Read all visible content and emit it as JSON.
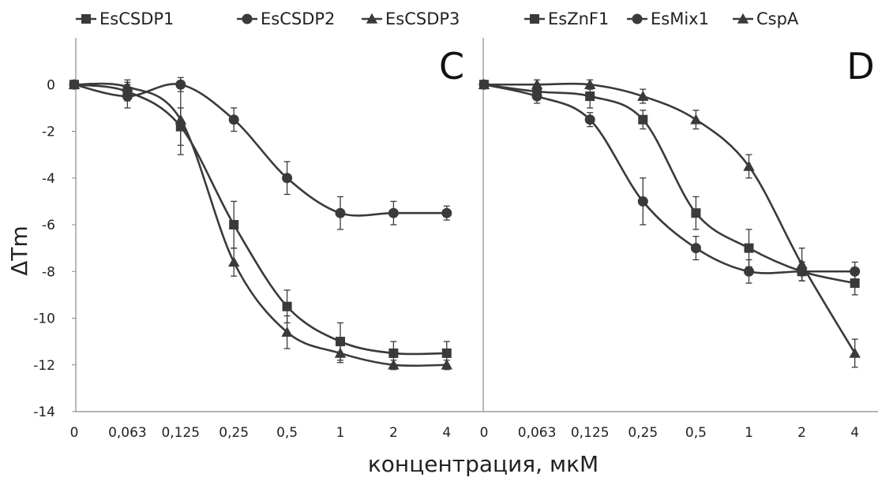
{
  "chart_data": [
    {
      "type": "line",
      "panel_label": "C",
      "x": [
        "0",
        "0,063",
        "0,125",
        "0,25",
        "0,5",
        "1",
        "2",
        "4"
      ],
      "xlabel": "концентрация, мкМ",
      "ylabel": "ΔTm",
      "ylim": [
        -14,
        2
      ],
      "yticks": [
        0,
        -2,
        -4,
        -6,
        -8,
        -10,
        -12,
        -14
      ],
      "grid": false,
      "legend_position": "top",
      "series": [
        {
          "name": "EsCSDP1",
          "marker": "square",
          "values": [
            0,
            -0.3,
            -1.8,
            -6.0,
            -9.5,
            -11.0,
            -11.5,
            -11.5
          ],
          "errors": [
            0.1,
            0.4,
            0.8,
            1.0,
            0.7,
            0.8,
            0.5,
            0.5
          ]
        },
        {
          "name": "EsCSDP2",
          "marker": "circle",
          "values": [
            0,
            -0.5,
            0,
            -1.5,
            -4.0,
            -5.5,
            -5.5,
            -5.5
          ],
          "errors": [
            0.1,
            0.5,
            0.3,
            0.5,
            0.7,
            0.7,
            0.5,
            0.3
          ]
        },
        {
          "name": "EsCSDP3",
          "marker": "triangle",
          "values": [
            0,
            -0.1,
            -1.5,
            -7.6,
            -10.6,
            -11.5,
            -12.0,
            -12.0
          ],
          "errors": [
            0.1,
            0.3,
            1.5,
            0.6,
            0.7,
            0.4,
            0.2,
            0.2
          ]
        }
      ]
    },
    {
      "type": "line",
      "panel_label": "D",
      "x": [
        "0",
        "0,063",
        "0,125",
        "0,25",
        "0,5",
        "1",
        "2",
        "4"
      ],
      "ylim": [
        -14,
        2
      ],
      "grid": false,
      "legend_position": "top",
      "series": [
        {
          "name": "EsZnF1",
          "marker": "square",
          "values": [
            0,
            -0.3,
            -0.5,
            -1.5,
            -5.5,
            -7.0,
            -8.0,
            -8.5
          ],
          "errors": [
            0.1,
            0.3,
            0.5,
            0.4,
            0.7,
            0.8,
            0.4,
            0.5
          ]
        },
        {
          "name": "EsMix1",
          "marker": "circle",
          "values": [
            0,
            -0.5,
            -1.5,
            -5.0,
            -7.0,
            -8.0,
            -8.0,
            -8.0
          ],
          "errors": [
            0.1,
            0.3,
            0.3,
            1.0,
            0.5,
            0.5,
            0.4,
            0.4
          ]
        },
        {
          "name": "CspA",
          "marker": "triangle",
          "values": [
            0,
            0,
            0,
            -0.5,
            -1.5,
            -3.5,
            -7.7,
            -11.5
          ],
          "errors": [
            0.1,
            0.2,
            0.2,
            0.3,
            0.4,
            0.5,
            0.7,
            0.6
          ]
        }
      ]
    }
  ],
  "colors": {
    "series": "#3a3a3a",
    "axis": "#888888",
    "text": "#222222"
  }
}
